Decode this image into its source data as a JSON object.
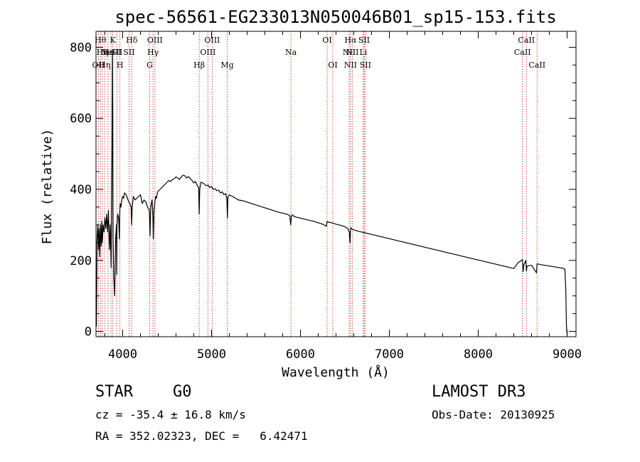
{
  "chart_data": {
    "type": "line",
    "title": "spec-56561-EG233013N050046B01_sp15-153.fits",
    "xlabel": "Wavelength (Å)",
    "ylabel": "Flux (relative)",
    "xlim": [
      3700,
      9100
    ],
    "ylim": [
      -15,
      845
    ],
    "xticks": [
      4000,
      5000,
      6000,
      7000,
      8000,
      9000
    ],
    "yticks": [
      0,
      200,
      400,
      600,
      800
    ],
    "xticklabels": [
      "4000",
      "5000",
      "6000",
      "7000",
      "8000",
      "9000"
    ],
    "yticklabels": [
      "0",
      "200",
      "400",
      "600",
      "800"
    ],
    "series": [
      {
        "name": "spectrum",
        "x": [
          3700,
          3705,
          3712,
          3720,
          3728,
          3735,
          3742,
          3750,
          3758,
          3765,
          3772,
          3780,
          3790,
          3800,
          3810,
          3820,
          3830,
          3840,
          3850,
          3860,
          3870,
          3880,
          3886,
          3889,
          3892,
          3900,
          3910,
          3920,
          3930,
          3933,
          3936,
          3945,
          3955,
          3962,
          3968,
          3972,
          3980,
          3990,
          4000,
          4010,
          4020,
          4040,
          4060,
          4080,
          4095,
          4101,
          4107,
          4120,
          4140,
          4160,
          4180,
          4200,
          4220,
          4240,
          4260,
          4280,
          4300,
          4308,
          4315,
          4330,
          4340,
          4345,
          4352,
          4370,
          4380,
          4390,
          4400,
          4420,
          4440,
          4460,
          4480,
          4500,
          4520,
          4540,
          4560,
          4580,
          4600,
          4620,
          4640,
          4660,
          4680,
          4700,
          4720,
          4740,
          4760,
          4780,
          4800,
          4820,
          4840,
          4855,
          4861,
          4867,
          4880,
          4900,
          4920,
          4940,
          4960,
          4980,
          5000,
          5020,
          5040,
          5060,
          5080,
          5100,
          5120,
          5140,
          5160,
          5172,
          5178,
          5184,
          5200,
          5220,
          5240,
          5260,
          5280,
          5300,
          5350,
          5400,
          5450,
          5500,
          5550,
          5600,
          5650,
          5700,
          5750,
          5800,
          5850,
          5880,
          5890,
          5896,
          5905,
          5930,
          5950,
          6000,
          6050,
          6100,
          6150,
          6200,
          6250,
          6290,
          6300,
          6310,
          6350,
          6400,
          6450,
          6500,
          6530,
          6550,
          6558,
          6563,
          6568,
          6580,
          6600,
          6650,
          6700,
          6750,
          6800,
          6850,
          6900,
          6950,
          7000,
          7050,
          7100,
          7150,
          7200,
          7250,
          7300,
          7350,
          7400,
          7450,
          7500,
          7550,
          7600,
          7650,
          7700,
          7750,
          7800,
          7850,
          7900,
          7950,
          8000,
          8050,
          8100,
          8150,
          8200,
          8250,
          8300,
          8350,
          8400,
          8450,
          8498,
          8505,
          8512,
          8535,
          8542,
          8549,
          8600,
          8655,
          8662,
          8669,
          8700,
          8750,
          8800,
          8850,
          8900,
          8950,
          8975,
          8985,
          8992,
          8998,
          9003
        ],
        "y": [
          100,
          15,
          260,
          300,
          230,
          290,
          210,
          300,
          240,
          310,
          250,
          300,
          280,
          320,
          290,
          330,
          280,
          340,
          230,
          300,
          180,
          500,
          790,
          620,
          260,
          150,
          100,
          260,
          300,
          160,
          300,
          330,
          320,
          260,
          340,
          360,
          350,
          370,
          380,
          375,
          390,
          385,
          370,
          360,
          350,
          300,
          350,
          380,
          370,
          375,
          380,
          385,
          360,
          370,
          365,
          350,
          340,
          270,
          350,
          370,
          320,
          260,
          340,
          380,
          375,
          390,
          395,
          400,
          405,
          410,
          415,
          420,
          425,
          422,
          428,
          430,
          435,
          432,
          428,
          435,
          440,
          438,
          432,
          436,
          430,
          425,
          418,
          422,
          410,
          405,
          330,
          400,
          420,
          418,
          415,
          410,
          412,
          405,
          408,
          400,
          402,
          396,
          398,
          390,
          393,
          385,
          388,
          372,
          320,
          378,
          385,
          382,
          380,
          376,
          374,
          370,
          368,
          364,
          360,
          356,
          352,
          348,
          344,
          340,
          336,
          333,
          330,
          326,
          300,
          318,
          328,
          324,
          322,
          319,
          316,
          313,
          310,
          306,
          302,
          296,
          310,
          308,
          306,
          302,
          299,
          295,
          290,
          280,
          250,
          290,
          292,
          288,
          286,
          282,
          279,
          276,
          273,
          270,
          267,
          264,
          261,
          258,
          255,
          252,
          249,
          246,
          243,
          240,
          237,
          234,
          231,
          228,
          225,
          222,
          219,
          216,
          213,
          210,
          207,
          204,
          201,
          198,
          195,
          192,
          189,
          186,
          183,
          180,
          177,
          194,
          202,
          168,
          186,
          200,
          170,
          184,
          186,
          165,
          190,
          190,
          188,
          186,
          184,
          182,
          180,
          178,
          175,
          120,
          20,
          -5,
          -10
        ]
      }
    ],
    "lines": [
      {
        "wave": 3727,
        "labels": [
          "OII"
        ],
        "rows": [
          2
        ]
      },
      {
        "wave": 3750,
        "labels": [
          "Hθ"
        ],
        "rows": [
          0
        ]
      },
      {
        "wave": 3771,
        "labels": [
          "Hη"
        ],
        "rows": [
          1
        ]
      },
      {
        "wave": 3798,
        "labels": [
          "Hη"
        ],
        "rows": [
          2
        ]
      },
      {
        "wave": 3835,
        "labels": [
          "Hε"
        ],
        "rows": [
          1
        ]
      },
      {
        "wave": 3869,
        "labels": [
          "NeIII"
        ],
        "rows": [
          1
        ]
      },
      {
        "wave": 3889,
        "labels": [
          "K"
        ],
        "rows": [
          0
        ]
      },
      {
        "wave": 3934,
        "labels": [
          "SII"
        ],
        "rows": [
          1
        ]
      },
      {
        "wave": 3969,
        "labels": [
          "H"
        ],
        "rows": [
          2
        ]
      },
      {
        "wave": 4072,
        "labels": [
          "SII"
        ],
        "rows": [
          1
        ]
      },
      {
        "wave": 4102,
        "labels": [
          "Hδ"
        ],
        "rows": [
          0
        ]
      },
      {
        "wave": 4304,
        "labels": [
          "G"
        ],
        "rows": [
          2
        ]
      },
      {
        "wave": 4341,
        "labels": [
          "Hγ"
        ],
        "rows": [
          1
        ]
      },
      {
        "wave": 4363,
        "labels": [
          "OIII"
        ],
        "rows": [
          0
        ]
      },
      {
        "wave": 4861,
        "labels": [
          "Hβ"
        ],
        "rows": [
          2
        ]
      },
      {
        "wave": 4959,
        "labels": [
          "OIII"
        ],
        "rows": [
          1
        ]
      },
      {
        "wave": 5007,
        "labels": [
          "OIII"
        ],
        "rows": [
          0
        ]
      },
      {
        "wave": 5176,
        "labels": [
          "Mg"
        ],
        "rows": [
          2
        ]
      },
      {
        "wave": 5893,
        "labels": [
          "Na"
        ],
        "rows": [
          1
        ]
      },
      {
        "wave": 6300,
        "labels": [
          "OI"
        ],
        "rows": [
          0
        ]
      },
      {
        "wave": 6364,
        "labels": [
          "OI"
        ],
        "rows": [
          2
        ]
      },
      {
        "wave": 6548,
        "labels": [
          "NII"
        ],
        "rows": [
          1
        ]
      },
      {
        "wave": 6563,
        "labels": [
          "Hα",
          "NII"
        ],
        "rows": [
          0,
          2
        ]
      },
      {
        "wave": 6583,
        "labels": [
          "NII"
        ],
        "rows": [
          1
        ]
      },
      {
        "wave": 6707,
        "labels": [
          "Li"
        ],
        "rows": [
          1
        ]
      },
      {
        "wave": 6716,
        "labels": [
          "SII"
        ],
        "rows": [
          0
        ]
      },
      {
        "wave": 6731,
        "labels": [
          "SII"
        ],
        "rows": [
          2
        ]
      },
      {
        "wave": 8498,
        "labels": [
          "CaII"
        ],
        "rows": [
          1
        ]
      },
      {
        "wave": 8542,
        "labels": [
          "CaII"
        ],
        "rows": [
          0
        ]
      },
      {
        "wave": 8662,
        "labels": [
          "CaII"
        ],
        "rows": [
          2
        ]
      }
    ]
  },
  "info": {
    "object_class": "STAR",
    "subclass": "G0",
    "survey": "LAMOST DR3",
    "redshift": "cz = -35.4 ± 16.8 km/s",
    "obs_date": "Obs-Date: 20130925",
    "coords": "RA = 352.02323, DEC =   6.42471"
  },
  "colors": {
    "line_marker": "#c0392b",
    "ink": "#000000",
    "background": "#ffffff"
  }
}
